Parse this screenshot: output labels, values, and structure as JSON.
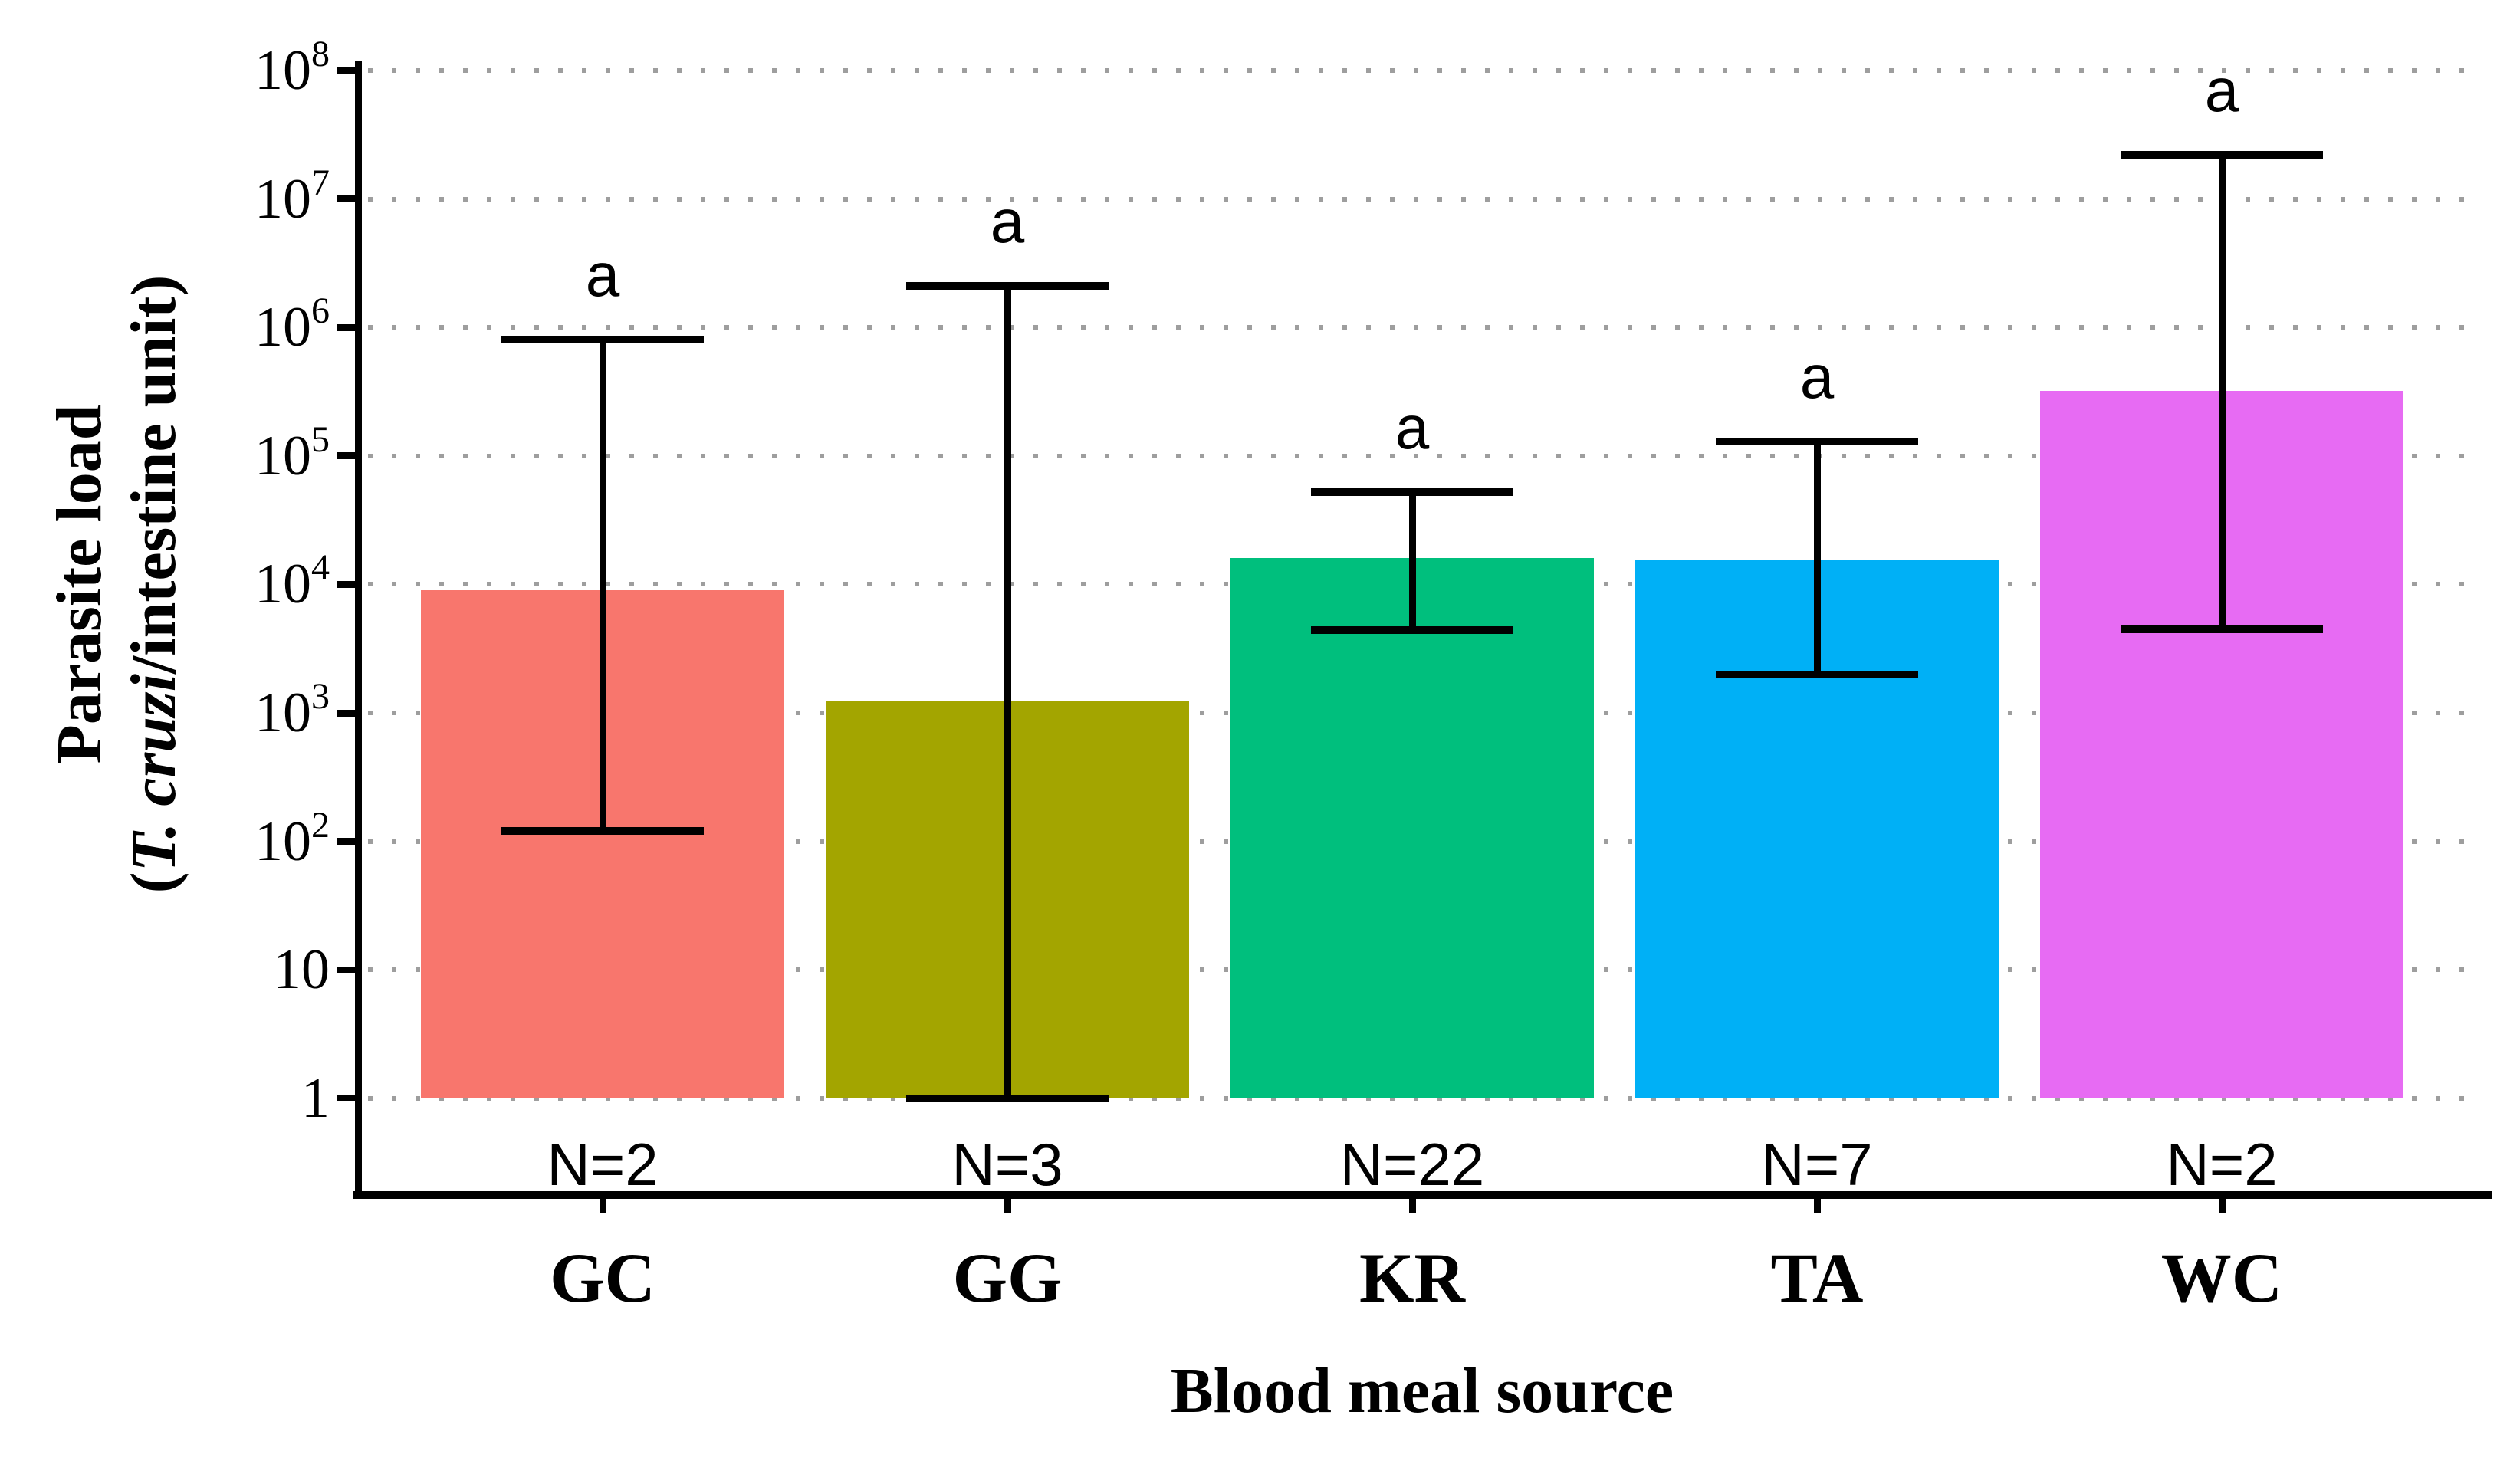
{
  "figure": {
    "background": "#ffffff",
    "axis_color": "#000000",
    "grid_color": "#9e9e9e",
    "grid_style": "dotted horizontal line at every decade"
  },
  "y_axis": {
    "title_line1": "Parasite load",
    "title_line2_prefix": "(",
    "title_line2_italic": "T. cruzi",
    "title_line2_rest": "/intestine unit)",
    "scale": "log10",
    "ticks": [
      {
        "base": "10",
        "exp": "8",
        "value": 100000000
      },
      {
        "base": "10",
        "exp": "7",
        "value": 10000000
      },
      {
        "base": "10",
        "exp": "6",
        "value": 1000000
      },
      {
        "base": "10",
        "exp": "5",
        "value": 100000
      },
      {
        "base": "10",
        "exp": "4",
        "value": 10000
      },
      {
        "base": "10",
        "exp": "3",
        "value": 1000
      },
      {
        "base": "10",
        "exp": "2",
        "value": 100
      },
      {
        "base": "10",
        "exp": "",
        "value": 10
      },
      {
        "base": "1",
        "exp": "",
        "value": 1
      }
    ]
  },
  "x_axis": {
    "title": "Blood meal source"
  },
  "chart_data": {
    "type": "bar",
    "title": "",
    "xlabel": "Blood meal source",
    "ylabel": "Parasite load (T. cruzi/intestine unit)",
    "yscale": "log10",
    "ylim": [
      1,
      100000000
    ],
    "bar_baseline_value": 1,
    "grid": "horizontal dotted gridlines at each power of ten",
    "legend": "none",
    "categories": [
      "GC",
      "GG",
      "KR",
      "TA",
      "WC"
    ],
    "values": [
      9000,
      1250,
      16000,
      15500,
      320000
    ],
    "error_low": [
      120,
      1,
      4400,
      2000,
      4500
    ],
    "error_high": [
      800000,
      2100000,
      52000,
      130000,
      22000000
    ],
    "sample_sizes": [
      "N=2",
      "N=3",
      "N=22",
      "N=7",
      "N=2"
    ],
    "sig_letters": [
      "a",
      "a",
      "a",
      "a",
      "a"
    ],
    "bar_colors": [
      "#F8766D",
      "#A3A500",
      "#00BF7D",
      "#00B0F6",
      "#E76BF3"
    ]
  }
}
